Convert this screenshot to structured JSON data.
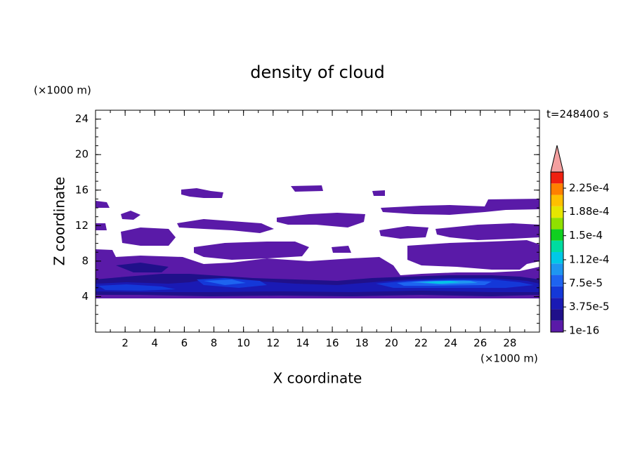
{
  "chart_data": {
    "type": "contour",
    "title": "density of cloud",
    "x_label": "X coordinate",
    "y_label": "Z coordinate",
    "x_unit": "(×1000 m)",
    "y_unit": "(×1000 m)",
    "time_label": "t=248400 s",
    "xlim": [
      0,
      30
    ],
    "ylim": [
      0,
      25
    ],
    "xticks": [
      2,
      4,
      6,
      8,
      10,
      12,
      14,
      16,
      18,
      20,
      22,
      24,
      26,
      28
    ],
    "yticks": [
      4,
      8,
      12,
      16,
      20,
      24
    ],
    "colorbar": {
      "ticks": [
        {
          "value": 1e-16,
          "label": "1e-16"
        },
        {
          "value": 3.75e-05,
          "label": "3.75e-5"
        },
        {
          "value": 7.5e-05,
          "label": "7.5e-5"
        },
        {
          "value": 0.000112,
          "label": "1.12e-4"
        },
        {
          "value": 0.00015,
          "label": "1.5e-4"
        },
        {
          "value": 0.000188,
          "label": "1.88e-4"
        },
        {
          "value": 0.000225,
          "label": "2.25e-4"
        }
      ],
      "colors": [
        "#5a1aa8",
        "#20108a",
        "#1a1ab4",
        "#1438d8",
        "#1e64f0",
        "#1e96f0",
        "#00c8e6",
        "#00dca0",
        "#10d020",
        "#90e000",
        "#e6e600",
        "#ffc000",
        "#ff8000",
        "#f02010"
      ],
      "extend_color": "#f4a0a0"
    }
  }
}
